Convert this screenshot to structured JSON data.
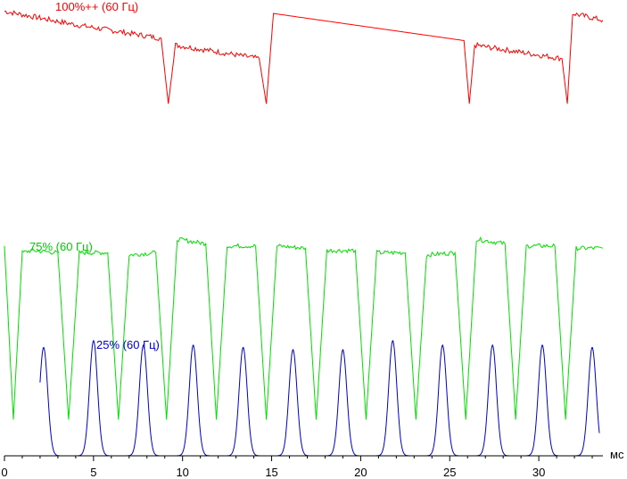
{
  "chart_data": {
    "type": "line",
    "xlabel": "мс",
    "xlim": [
      0,
      33.6
    ],
    "ylim": [
      0,
      1
    ],
    "x_ticks": [
      0,
      5,
      10,
      15,
      20,
      25,
      30
    ],
    "grid": false,
    "series": [
      {
        "name": "100%++ (60 Гц)",
        "color": "#ff0000",
        "x": [
          0,
          4,
          8.8,
          9.2,
          9.6,
          14.3,
          14.7,
          15.1,
          25.8,
          26.1,
          26.4,
          31.3,
          31.6,
          31.9,
          33.6
        ],
        "y": [
          0.985,
          0.955,
          0.925,
          0.78,
          0.91,
          0.88,
          0.78,
          0.98,
          0.92,
          0.78,
          0.91,
          0.88,
          0.78,
          0.98,
          0.965
        ]
      },
      {
        "name": "75% (60 Гц)",
        "color": "#00e000",
        "x": [
          0,
          0.5,
          1.0,
          1.5,
          3.0,
          3.6,
          4.2,
          5.8,
          6.4,
          7.0,
          8.5,
          9.1,
          9.7,
          11.3,
          11.9,
          12.5,
          14.1,
          14.7,
          15.3,
          16.9,
          17.5,
          18.1,
          19.7,
          20.3,
          20.9,
          22.5,
          23.1,
          23.7,
          25.3,
          25.9,
          26.5,
          28.1,
          28.7,
          29.3,
          30.9,
          31.5,
          32.1,
          33.6
        ],
        "y": [
          0.465,
          0.08,
          0.45,
          0.455,
          0.45,
          0.08,
          0.45,
          0.45,
          0.08,
          0.445,
          0.45,
          0.08,
          0.48,
          0.47,
          0.08,
          0.465,
          0.465,
          0.08,
          0.465,
          0.46,
          0.08,
          0.455,
          0.455,
          0.08,
          0.45,
          0.45,
          0.08,
          0.445,
          0.45,
          0.08,
          0.48,
          0.47,
          0.08,
          0.465,
          0.465,
          0.08,
          0.46,
          0.46
        ]
      },
      {
        "name": "25% (60 Гц)",
        "color": "#0000cc",
        "peaks_x": [
          2.2,
          5.0,
          7.8,
          10.6,
          13.4,
          16.2,
          19.0,
          21.8,
          24.6,
          27.4,
          30.2,
          33.0
        ],
        "peaks_y": [
          0.24,
          0.255,
          0.245,
          0.245,
          0.24,
          0.235,
          0.235,
          0.255,
          0.245,
          0.245,
          0.245,
          0.24
        ],
        "baseline": 0.0
      }
    ],
    "labels": {
      "series_0": "100%++ (60 Гц)",
      "series_1": "75% (60 Гц)",
      "series_2": "25% (60 Гц)"
    }
  }
}
